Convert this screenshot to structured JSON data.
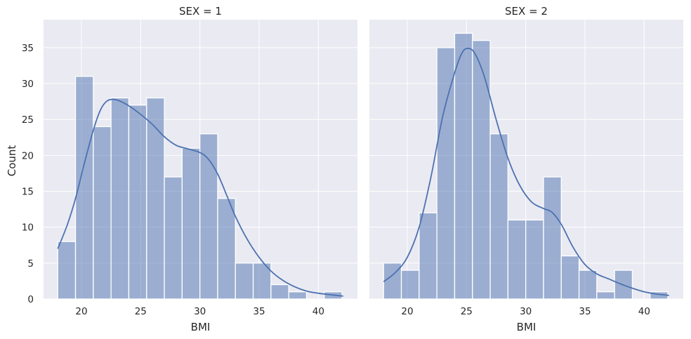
{
  "chart_data": {
    "type": "histogram",
    "ylabel": "Count",
    "ylim": [
      0,
      38.9
    ],
    "xlim": [
      16.8,
      43.3
    ],
    "yticks": [
      0,
      5,
      10,
      15,
      20,
      25,
      30,
      35
    ],
    "xticks": [
      20,
      25,
      30,
      35,
      40
    ],
    "grid": true,
    "kde": true,
    "style": {
      "background": "#eaeaf2",
      "bar_fill": "#4c72b0",
      "bar_opacity": 0.5,
      "kde_color": "#4c72b0",
      "grid_color": "#ffffff"
    },
    "bin_edges": [
      18.0,
      19.5,
      21.0,
      22.5,
      24.0,
      25.5,
      27.0,
      28.5,
      30.0,
      31.5,
      33.0,
      34.5,
      36.0,
      37.5,
      39.0,
      40.5,
      42.0
    ],
    "panels": [
      {
        "title": "SEX = 1",
        "xlabel": "BMI",
        "counts": [
          8,
          31,
          24,
          28,
          27,
          28,
          17,
          21,
          23,
          14,
          5,
          5,
          2,
          1,
          0,
          1
        ],
        "kde": [
          [
            18.0,
            7.0
          ],
          [
            18.8,
            10.3
          ],
          [
            19.5,
            14.0
          ],
          [
            20.2,
            18.6
          ],
          [
            21.0,
            23.5
          ],
          [
            21.6,
            26.3
          ],
          [
            22.1,
            27.5
          ],
          [
            22.6,
            27.8
          ],
          [
            23.2,
            27.6
          ],
          [
            24.0,
            26.9
          ],
          [
            25.0,
            25.7
          ],
          [
            26.0,
            24.3
          ],
          [
            27.0,
            22.6
          ],
          [
            28.0,
            21.4
          ],
          [
            29.0,
            20.9
          ],
          [
            30.0,
            20.4
          ],
          [
            30.7,
            19.5
          ],
          [
            31.5,
            17.4
          ],
          [
            32.3,
            14.3
          ],
          [
            33.0,
            11.5
          ],
          [
            34.0,
            8.3
          ],
          [
            35.0,
            5.8
          ],
          [
            36.0,
            3.9
          ],
          [
            37.0,
            2.6
          ],
          [
            38.0,
            1.7
          ],
          [
            39.0,
            1.1
          ],
          [
            40.0,
            0.8
          ],
          [
            41.0,
            0.6
          ],
          [
            42.1,
            0.4
          ]
        ]
      },
      {
        "title": "SEX = 2",
        "xlabel": "BMI",
        "counts": [
          5,
          4,
          12,
          35,
          37,
          36,
          23,
          11,
          11,
          17,
          6,
          4,
          1,
          4,
          0,
          1
        ],
        "kde": [
          [
            18.0,
            2.4
          ],
          [
            19.0,
            3.7
          ],
          [
            20.0,
            5.8
          ],
          [
            21.0,
            10.0
          ],
          [
            22.0,
            17.0
          ],
          [
            23.0,
            25.5
          ],
          [
            24.0,
            31.5
          ],
          [
            24.6,
            34.2
          ],
          [
            25.1,
            34.9
          ],
          [
            25.7,
            34.2
          ],
          [
            26.5,
            31.0
          ],
          [
            27.5,
            25.0
          ],
          [
            28.5,
            19.6
          ],
          [
            29.5,
            15.8
          ],
          [
            30.5,
            13.5
          ],
          [
            31.5,
            12.6
          ],
          [
            32.2,
            12.1
          ],
          [
            33.0,
            10.4
          ],
          [
            34.0,
            7.2
          ],
          [
            35.0,
            4.8
          ],
          [
            36.0,
            3.5
          ],
          [
            37.0,
            2.8
          ],
          [
            38.0,
            2.1
          ],
          [
            39.0,
            1.5
          ],
          [
            40.0,
            1.0
          ],
          [
            41.0,
            0.7
          ],
          [
            42.1,
            0.5
          ]
        ]
      }
    ]
  }
}
